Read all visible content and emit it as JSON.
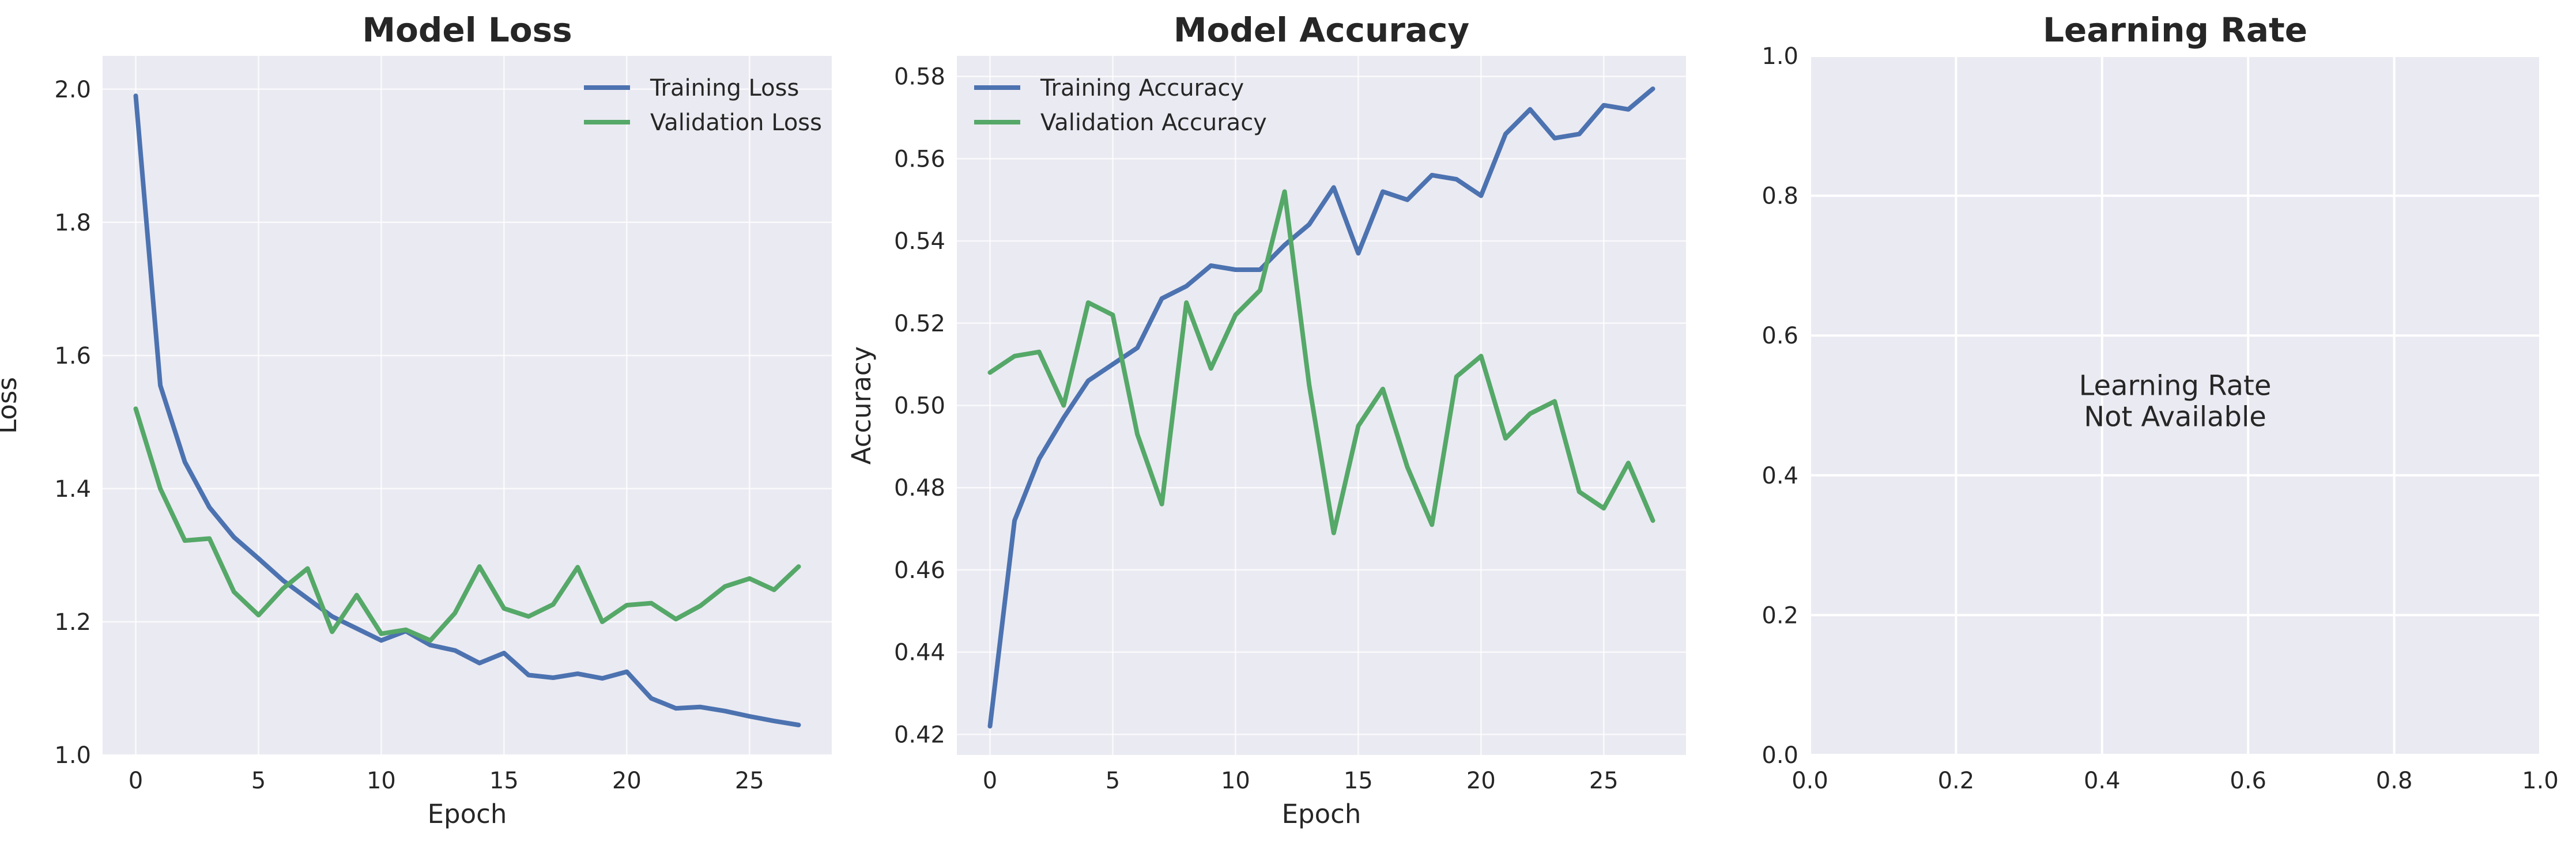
{
  "colors": {
    "panel_bg": "#eaeaf2",
    "grid": "#ffffff",
    "training": "#4c72b0",
    "validation": "#55a868"
  },
  "chart_data": [
    {
      "type": "line",
      "title": "Model Loss",
      "xlabel": "Epoch",
      "ylabel": "Loss",
      "xlim": [
        -1.35,
        28.35
      ],
      "ylim": [
        1.0,
        2.05
      ],
      "xticks": [
        0,
        5,
        10,
        15,
        20,
        25
      ],
      "yticks": [
        1.0,
        1.2,
        1.4,
        1.6,
        1.8,
        2.0
      ],
      "ytick_decimals": 1,
      "grid": true,
      "legend": "upper right",
      "x": [
        0,
        1,
        2,
        3,
        4,
        5,
        6,
        7,
        8,
        9,
        10,
        11,
        12,
        13,
        14,
        15,
        16,
        17,
        18,
        19,
        20,
        21,
        22,
        23,
        24,
        25,
        26,
        27
      ],
      "series": [
        {
          "name": "Training Loss",
          "color": "#4c72b0",
          "values": [
            1.99,
            1.555,
            1.44,
            1.372,
            1.327,
            1.295,
            1.262,
            1.235,
            1.208,
            1.19,
            1.172,
            1.186,
            1.165,
            1.157,
            1.138,
            1.153,
            1.12,
            1.116,
            1.122,
            1.115,
            1.125,
            1.085,
            1.07,
            1.072,
            1.066,
            1.058,
            1.051,
            1.045
          ]
        },
        {
          "name": "Validation Loss",
          "color": "#55a868",
          "values": [
            1.52,
            1.4,
            1.322,
            1.325,
            1.245,
            1.21,
            1.25,
            1.28,
            1.185,
            1.24,
            1.182,
            1.188,
            1.172,
            1.213,
            1.283,
            1.22,
            1.208,
            1.226,
            1.282,
            1.2,
            1.225,
            1.228,
            1.204,
            1.224,
            1.253,
            1.265,
            1.248,
            1.283
          ]
        }
      ]
    },
    {
      "type": "line",
      "title": "Model Accuracy",
      "xlabel": "Epoch",
      "ylabel": "Accuracy",
      "xlim": [
        -1.35,
        28.35
      ],
      "ylim": [
        0.415,
        0.585
      ],
      "xticks": [
        0,
        5,
        10,
        15,
        20,
        25
      ],
      "yticks": [
        0.42,
        0.44,
        0.46,
        0.48,
        0.5,
        0.52,
        0.54,
        0.56,
        0.58
      ],
      "ytick_decimals": 2,
      "grid": true,
      "legend": "upper left",
      "x": [
        0,
        1,
        2,
        3,
        4,
        5,
        6,
        7,
        8,
        9,
        10,
        11,
        12,
        13,
        14,
        15,
        16,
        17,
        18,
        19,
        20,
        21,
        22,
        23,
        24,
        25,
        26,
        27
      ],
      "series": [
        {
          "name": "Training Accuracy",
          "color": "#4c72b0",
          "values": [
            0.422,
            0.472,
            0.487,
            0.497,
            0.506,
            0.51,
            0.514,
            0.526,
            0.529,
            0.534,
            0.533,
            0.533,
            0.539,
            0.544,
            0.553,
            0.537,
            0.552,
            0.55,
            0.556,
            0.555,
            0.551,
            0.566,
            0.572,
            0.565,
            0.566,
            0.573,
            0.572,
            0.577
          ]
        },
        {
          "name": "Validation Accuracy",
          "color": "#55a868",
          "values": [
            0.508,
            0.512,
            0.513,
            0.5,
            0.525,
            0.522,
            0.493,
            0.476,
            0.525,
            0.509,
            0.522,
            0.528,
            0.552,
            0.505,
            0.469,
            0.495,
            0.504,
            0.485,
            0.471,
            0.507,
            0.512,
            0.492,
            0.498,
            0.501,
            0.479,
            0.475,
            0.486,
            0.472
          ]
        }
      ]
    },
    {
      "type": "line",
      "title": "Learning Rate",
      "xlabel": "",
      "ylabel": "",
      "xlim": [
        0,
        1
      ],
      "ylim": [
        0,
        1
      ],
      "xticks": [
        0.0,
        0.2,
        0.4,
        0.6,
        0.8,
        1.0
      ],
      "yticks": [
        0.0,
        0.2,
        0.4,
        0.6,
        0.8,
        1.0
      ],
      "ytick_decimals": 1,
      "xtick_decimals": 1,
      "grid": true,
      "series": [],
      "annotation": [
        "Learning Rate",
        "Not Available"
      ]
    }
  ]
}
